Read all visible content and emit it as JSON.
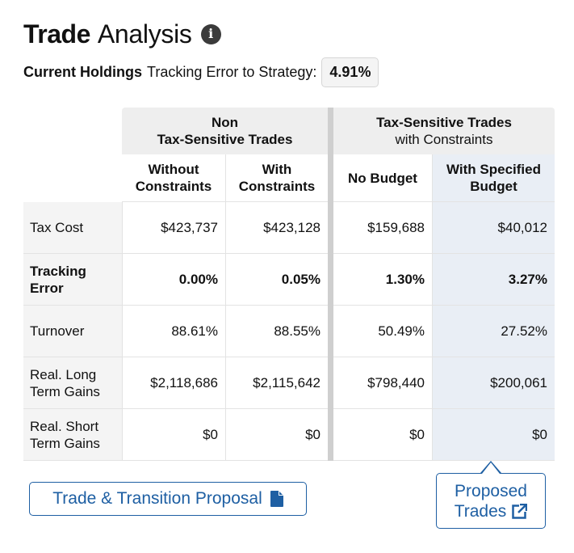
{
  "header": {
    "title_bold": "Trade",
    "title_light": "Analysis",
    "info_icon": "info-icon"
  },
  "subtitle": {
    "label_bold": "Current Holdings",
    "label": "Tracking Error to Strategy:",
    "value": "4.91%"
  },
  "table": {
    "groups": [
      {
        "line1": "Non",
        "line2": "Tax-Sensitive Trades"
      },
      {
        "line1": "Tax-Sensitive Trades",
        "line2": "with Constraints"
      }
    ],
    "columns": [
      {
        "line1": "Without",
        "line2": "Constraints"
      },
      {
        "line1": "With",
        "line2": "Constraints"
      },
      {
        "line1": "No Budget",
        "line2": ""
      },
      {
        "line1": "With Specified",
        "line2": "Budget"
      }
    ],
    "rows": [
      {
        "label1": "Tax Cost",
        "label2": "",
        "values": [
          "$423,737",
          "$423,128",
          "$159,688",
          "$40,012"
        ]
      },
      {
        "label1": "Tracking",
        "label2": "Error",
        "values": [
          "0.00%",
          "0.05%",
          "1.30%",
          "3.27%"
        ]
      },
      {
        "label1": "Turnover",
        "label2": "",
        "values": [
          "88.61%",
          "88.55%",
          "50.49%",
          "27.52%"
        ]
      },
      {
        "label1": "Real. Long",
        "label2": "Term Gains",
        "values": [
          "$2,118,686",
          "$2,115,642",
          "$798,440",
          "$200,061"
        ]
      },
      {
        "label1": "Real. Short",
        "label2": "Term Gains",
        "values": [
          "$0",
          "$0",
          "$0",
          "$0"
        ]
      }
    ]
  },
  "buttons": {
    "proposal": {
      "label": "Trade & Transition Proposal",
      "icon": "document-icon"
    },
    "proposed_trades": {
      "line1": "Proposed",
      "line2": "Trades",
      "icon": "external-link-icon"
    }
  },
  "colors": {
    "accent": "#1e5fa3",
    "highlight_column": "#e9eef5",
    "header_bg": "#eeeeee"
  }
}
